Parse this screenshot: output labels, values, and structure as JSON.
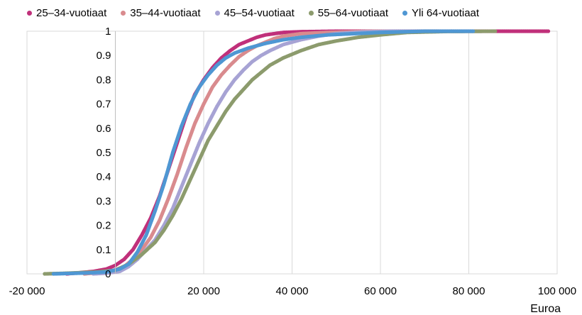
{
  "chart_data": {
    "type": "scatter",
    "xlabel": "Euroa",
    "ylabel": "",
    "xlim": [
      -20000,
      100000
    ],
    "ylim": [
      0,
      1
    ],
    "x_ticks": [
      {
        "value": -20000,
        "label": "-20 000"
      },
      {
        "value": 20000,
        "label": "20 000"
      },
      {
        "value": 40000,
        "label": "40 000"
      },
      {
        "value": 60000,
        "label": "60 000"
      },
      {
        "value": 80000,
        "label": "80 000"
      },
      {
        "value": 100000,
        "label": "100 000"
      }
    ],
    "x_gridlines": [
      0,
      20000,
      40000,
      60000,
      80000,
      100000
    ],
    "y_ticks": [
      {
        "value": 0,
        "label": "0"
      },
      {
        "value": 0.1,
        "label": "0.1"
      },
      {
        "value": 0.2,
        "label": "0.2"
      },
      {
        "value": 0.3,
        "label": "0.3"
      },
      {
        "value": 0.4,
        "label": "0.4"
      },
      {
        "value": 0.5,
        "label": "0.5"
      },
      {
        "value": 0.6,
        "label": "0.6"
      },
      {
        "value": 0.7,
        "label": "0.7"
      },
      {
        "value": 0.8,
        "label": "0.8"
      },
      {
        "value": 0.9,
        "label": "0.9"
      },
      {
        "value": 1,
        "label": "1"
      }
    ],
    "grid": "vertical",
    "legend_position": "top",
    "series": [
      {
        "name": "25–34-vuotiaat",
        "color": "#c0307a",
        "points": [
          [
            -11000,
            0
          ],
          [
            -8000,
            0.005
          ],
          [
            -5000,
            0.01
          ],
          [
            -2000,
            0.02
          ],
          [
            0,
            0.035
          ],
          [
            2000,
            0.06
          ],
          [
            4000,
            0.1
          ],
          [
            6000,
            0.16
          ],
          [
            8000,
            0.23
          ],
          [
            10000,
            0.32
          ],
          [
            12000,
            0.43
          ],
          [
            14000,
            0.54
          ],
          [
            16000,
            0.65
          ],
          [
            18000,
            0.74
          ],
          [
            20000,
            0.8
          ],
          [
            22000,
            0.85
          ],
          [
            24000,
            0.89
          ],
          [
            26000,
            0.92
          ],
          [
            28000,
            0.945
          ],
          [
            30000,
            0.96
          ],
          [
            32000,
            0.975
          ],
          [
            34000,
            0.985
          ],
          [
            36000,
            0.99
          ],
          [
            38000,
            0.995
          ],
          [
            42000,
            0.998
          ],
          [
            50000,
            1
          ],
          [
            98000,
            1
          ]
        ]
      },
      {
        "name": "35–44-vuotiaat",
        "color": "#d98b8e",
        "points": [
          [
            -7000,
            0
          ],
          [
            -4000,
            0.005
          ],
          [
            -1000,
            0.01
          ],
          [
            2000,
            0.03
          ],
          [
            4000,
            0.06
          ],
          [
            6000,
            0.1
          ],
          [
            8000,
            0.15
          ],
          [
            10000,
            0.22
          ],
          [
            12000,
            0.31
          ],
          [
            14000,
            0.41
          ],
          [
            16000,
            0.52
          ],
          [
            18000,
            0.62
          ],
          [
            20000,
            0.7
          ],
          [
            22000,
            0.77
          ],
          [
            24000,
            0.82
          ],
          [
            26000,
            0.86
          ],
          [
            28000,
            0.895
          ],
          [
            30000,
            0.92
          ],
          [
            32000,
            0.94
          ],
          [
            34000,
            0.955
          ],
          [
            36000,
            0.97
          ],
          [
            38000,
            0.98
          ],
          [
            42000,
            0.99
          ],
          [
            48000,
            0.995
          ],
          [
            56000,
            0.999
          ],
          [
            60000,
            1
          ],
          [
            73000,
            1
          ]
        ]
      },
      {
        "name": "45–54-vuotiaat",
        "color": "#a7a3d4",
        "points": [
          [
            -5000,
            0
          ],
          [
            -2000,
            0.003
          ],
          [
            1000,
            0.01
          ],
          [
            3000,
            0.03
          ],
          [
            5000,
            0.06
          ],
          [
            7000,
            0.1
          ],
          [
            9000,
            0.14
          ],
          [
            11000,
            0.2
          ],
          [
            13000,
            0.27
          ],
          [
            15000,
            0.36
          ],
          [
            17000,
            0.45
          ],
          [
            19000,
            0.54
          ],
          [
            21000,
            0.62
          ],
          [
            23000,
            0.69
          ],
          [
            25000,
            0.75
          ],
          [
            27000,
            0.8
          ],
          [
            29000,
            0.84
          ],
          [
            31000,
            0.875
          ],
          [
            33000,
            0.9
          ],
          [
            35000,
            0.92
          ],
          [
            38000,
            0.945
          ],
          [
            42000,
            0.965
          ],
          [
            46000,
            0.98
          ],
          [
            50000,
            0.99
          ],
          [
            56000,
            0.997
          ],
          [
            62000,
            1
          ],
          [
            70000,
            1
          ]
        ]
      },
      {
        "name": "55–64-vuotiaat",
        "color": "#8c9b6d",
        "points": [
          [
            -16000,
            0
          ],
          [
            -12000,
            0.002
          ],
          [
            -8000,
            0.005
          ],
          [
            -4000,
            0.008
          ],
          [
            0,
            0.015
          ],
          [
            3000,
            0.04
          ],
          [
            6000,
            0.08
          ],
          [
            9000,
            0.13
          ],
          [
            11000,
            0.18
          ],
          [
            13000,
            0.24
          ],
          [
            15000,
            0.31
          ],
          [
            17000,
            0.39
          ],
          [
            19000,
            0.47
          ],
          [
            21000,
            0.55
          ],
          [
            23000,
            0.61
          ],
          [
            25000,
            0.67
          ],
          [
            27000,
            0.72
          ],
          [
            29000,
            0.76
          ],
          [
            31000,
            0.8
          ],
          [
            33000,
            0.83
          ],
          [
            35000,
            0.86
          ],
          [
            38000,
            0.89
          ],
          [
            42000,
            0.92
          ],
          [
            46000,
            0.945
          ],
          [
            50000,
            0.96
          ],
          [
            55000,
            0.975
          ],
          [
            60000,
            0.985
          ],
          [
            66000,
            0.995
          ],
          [
            75000,
            0.999
          ],
          [
            86000,
            1
          ]
        ]
      },
      {
        "name": "Yli 64-vuotiaat",
        "color": "#4f97d3",
        "points": [
          [
            -14000,
            0
          ],
          [
            -10000,
            0.002
          ],
          [
            -6000,
            0.004
          ],
          [
            -2000,
            0.008
          ],
          [
            1000,
            0.02
          ],
          [
            3000,
            0.04
          ],
          [
            5000,
            0.09
          ],
          [
            7000,
            0.16
          ],
          [
            9000,
            0.26
          ],
          [
            11000,
            0.37
          ],
          [
            13000,
            0.5
          ],
          [
            15000,
            0.61
          ],
          [
            17000,
            0.7
          ],
          [
            19000,
            0.77
          ],
          [
            21000,
            0.82
          ],
          [
            23000,
            0.86
          ],
          [
            25000,
            0.89
          ],
          [
            27000,
            0.91
          ],
          [
            30000,
            0.93
          ],
          [
            34000,
            0.95
          ],
          [
            38000,
            0.965
          ],
          [
            42000,
            0.975
          ],
          [
            48000,
            0.985
          ],
          [
            54000,
            0.99
          ],
          [
            60000,
            0.995
          ],
          [
            66000,
            0.998
          ],
          [
            70000,
            1
          ],
          [
            81000,
            1
          ]
        ]
      }
    ]
  }
}
